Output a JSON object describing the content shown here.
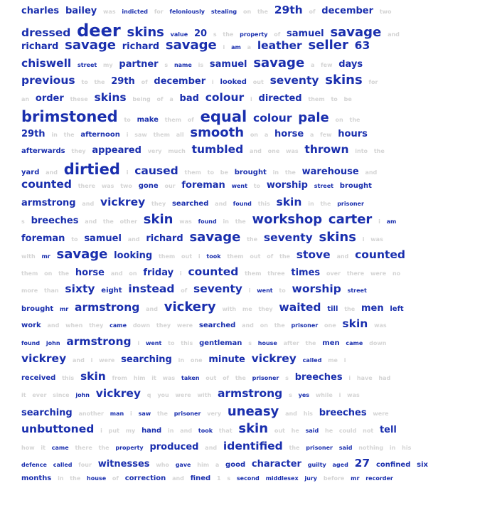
{
  "cloud": {
    "lines": [
      [
        "s3:charles",
        "s3:bailey",
        "l:was",
        "s1:indicted",
        "l:for",
        "s1:feloniously",
        "s1:stealing",
        "l:on",
        "l:the",
        "s4:29th",
        "l:of",
        "s3:december",
        "l:two"
      ],
      [
        "s4:dressed",
        "s7:deer",
        "s5:skins",
        "s1:value",
        "s3:20",
        "l:s",
        "l:the",
        "s1:property",
        "l:of",
        "s3:samuel",
        "s5:savage",
        "l:and"
      ],
      [
        "s3:richard",
        "s5:savage",
        "s3:richard",
        "s5:savage",
        "l:i",
        "s1:am",
        "l:a",
        "s4:leather",
        "s5:seller",
        "s4:63"
      ],
      [
        "s4:chiswell",
        "s1:street",
        "l:my",
        "s3:partner",
        "l:s",
        "s1:name",
        "l:is",
        "s3:samuel",
        "s5:savage",
        "l:a",
        "l:few",
        "s3:days"
      ],
      [
        "s4:previous",
        "l:to",
        "l:the",
        "s3:29th",
        "l:of",
        "s3:december",
        "l:i",
        "s2:looked",
        "l:out",
        "s4:seventy",
        "s5:skins",
        "l:for"
      ],
      [
        "l:an",
        "s3:order",
        "l:these",
        "s4:skins",
        "l:being",
        "l:of",
        "l:a",
        "s3:bad",
        "s4:colour",
        "l:i",
        "s3:directed",
        "l:them",
        "l:to",
        "l:be"
      ],
      [
        "s6:brimstoned",
        "l:to",
        "s2:make",
        "l:them",
        "l:of",
        "s6:equal",
        "s4:colour",
        "s5:pale",
        "l:on",
        "l:the"
      ],
      [
        "s3:29th",
        "l:in",
        "l:the",
        "s2:afternoon",
        "l:i",
        "l:saw",
        "l:them",
        "l:all",
        "s5:smooth",
        "l:on",
        "l:a",
        "s3:horse",
        "l:a",
        "l:few",
        "s3:hours"
      ],
      [
        "s2:afterwards",
        "l:they",
        "s3:appeared",
        "l:very",
        "l:much",
        "s4:tumbled",
        "l:and",
        "l:one",
        "l:was",
        "s4:thrown",
        "l:into",
        "l:the"
      ],
      [
        "s2:yard",
        "l:and",
        "s6:dirtied",
        "l:i",
        "s4:caused",
        "l:them",
        "l:to",
        "l:be",
        "s2:brought",
        "l:in",
        "l:the",
        "s3:warehouse",
        "l:and"
      ],
      [
        "s4:counted",
        "l:there",
        "l:was",
        "l:two",
        "s2:gone",
        "l:our",
        "s3:foreman",
        "s1:went",
        "l:to",
        "s3:worship",
        "s1:street",
        "s2:brought"
      ],
      [
        "s3:armstrong",
        "l:and",
        "s4:vickrey",
        "l:they",
        "s2:searched",
        "l:and",
        "s1:found",
        "l:this",
        "s4:skin",
        "l:in",
        "l:the",
        "s1:prisoner"
      ],
      [
        "l:s",
        "s3:breeches",
        "l:and",
        "l:the",
        "l:other",
        "s5:skin",
        "l:was",
        "s1:found",
        "l:in",
        "l:the",
        "s5:workshop",
        "s5:carter",
        "l:i",
        "s1:am"
      ],
      [
        "s3:foreman",
        "l:to",
        "s3:samuel",
        "l:and",
        "s3:richard",
        "s5:savage",
        "l:the",
        "s4:seventy",
        "s5:skins",
        "l:i",
        "l:was"
      ],
      [
        "l:with",
        "s1:mr",
        "s5:savage",
        "s3:looking",
        "l:them",
        "l:out",
        "l:i",
        "s1:took",
        "l:them",
        "l:out",
        "l:of",
        "l:the",
        "s4:stove",
        "l:and",
        "s4:counted"
      ],
      [
        "l:them",
        "l:on",
        "l:the",
        "s3:horse",
        "l:and",
        "l:on",
        "s3:friday",
        "l:i",
        "s4:counted",
        "l:them",
        "l:three",
        "s3:times",
        "l:over",
        "l:there",
        "l:were",
        "l:no"
      ],
      [
        "l:more",
        "l:than",
        "s4:sixty",
        "s2:eight",
        "s4:instead",
        "l:of",
        "s4:seventy",
        "l:i",
        "s1:went",
        "l:to",
        "s4:worship",
        "s1:street"
      ],
      [
        "s2:brought",
        "s1:mr",
        "s4:armstrong",
        "l:and",
        "s5:vickery",
        "l:with",
        "l:me",
        "l:they",
        "s4:waited",
        "s2:till",
        "l:the",
        "s3:men",
        "s2:left"
      ],
      [
        "s2:work",
        "l:and",
        "l:when",
        "l:they",
        "s1:came",
        "l:down",
        "l:they",
        "l:were",
        "s2:searched",
        "l:and",
        "l:on",
        "l:the",
        "s1:prisoner",
        "l:one",
        "s4:skin",
        "l:was"
      ],
      [
        "s1:found",
        "s1:john",
        "s4:armstrong",
        "l:i",
        "s1:went",
        "l:to",
        "l:this",
        "s2:gentleman",
        "l:s",
        "s1:house",
        "l:after",
        "l:the",
        "s2:men",
        "s1:came",
        "l:down"
      ],
      [
        "s4:vickrey",
        "l:and",
        "l:i",
        "l:were",
        "s3:searching",
        "l:in",
        "l:one",
        "s3:minute",
        "s4:vickrey",
        "s1:called",
        "l:me",
        "l:i"
      ],
      [
        "s2:received",
        "l:this",
        "s4:skin",
        "l:from",
        "l:him",
        "l:it",
        "l:was",
        "s1:taken",
        "l:out",
        "l:of",
        "l:the",
        "s1:prisoner",
        "l:s",
        "s3:breeches",
        "l:i",
        "l:have",
        "l:had"
      ],
      [
        "l:it",
        "l:ever",
        "l:since",
        "s1:john",
        "s4:vickrey",
        "l:q",
        "l:you",
        "l:were",
        "l:with",
        "s4:armstrong",
        "l:s",
        "s1:yes",
        "l:while",
        "l:i",
        "l:was"
      ],
      [
        "s3:searching",
        "l:another",
        "s1:man",
        "l:i",
        "s1:saw",
        "l:the",
        "s1:prisoner",
        "l:very",
        "s5:uneasy",
        "l:and",
        "l:his",
        "s3:breeches",
        "l:were"
      ],
      [
        "s4:unbuttoned",
        "l:i",
        "l:put",
        "l:my",
        "s2:hand",
        "l:in",
        "l:and",
        "s1:took",
        "l:that",
        "s5:skin",
        "l:out",
        "l:he",
        "s1:said",
        "l:he",
        "l:could",
        "l:not",
        "s3:tell"
      ],
      [
        "l:how",
        "l:it",
        "s1:came",
        "l:there",
        "l:the",
        "s1:property",
        "s3:produced",
        "l:and",
        "s4:identified",
        "l:the",
        "s1:prisoner",
        "s1:said",
        "l:nothing",
        "l:in",
        "l:his"
      ],
      [
        "s1:defence",
        "s1:called",
        "l:four",
        "s3:witnesses",
        "l:who",
        "s1:gave",
        "l:him",
        "l:a",
        "s2:good",
        "s3:character",
        "s1:guilty",
        "s1:aged",
        "s4:27",
        "s2:confined",
        "s2:six"
      ],
      [
        "s2:months",
        "l:in",
        "l:the",
        "s1:house",
        "l:of",
        "s2:correction",
        "l:and",
        "s2:fined",
        "l:1",
        "l:s",
        "s1:second",
        "s1:middlesex",
        "s1:jury",
        "l:before",
        "s1:mr",
        "s1:recorder"
      ]
    ]
  }
}
